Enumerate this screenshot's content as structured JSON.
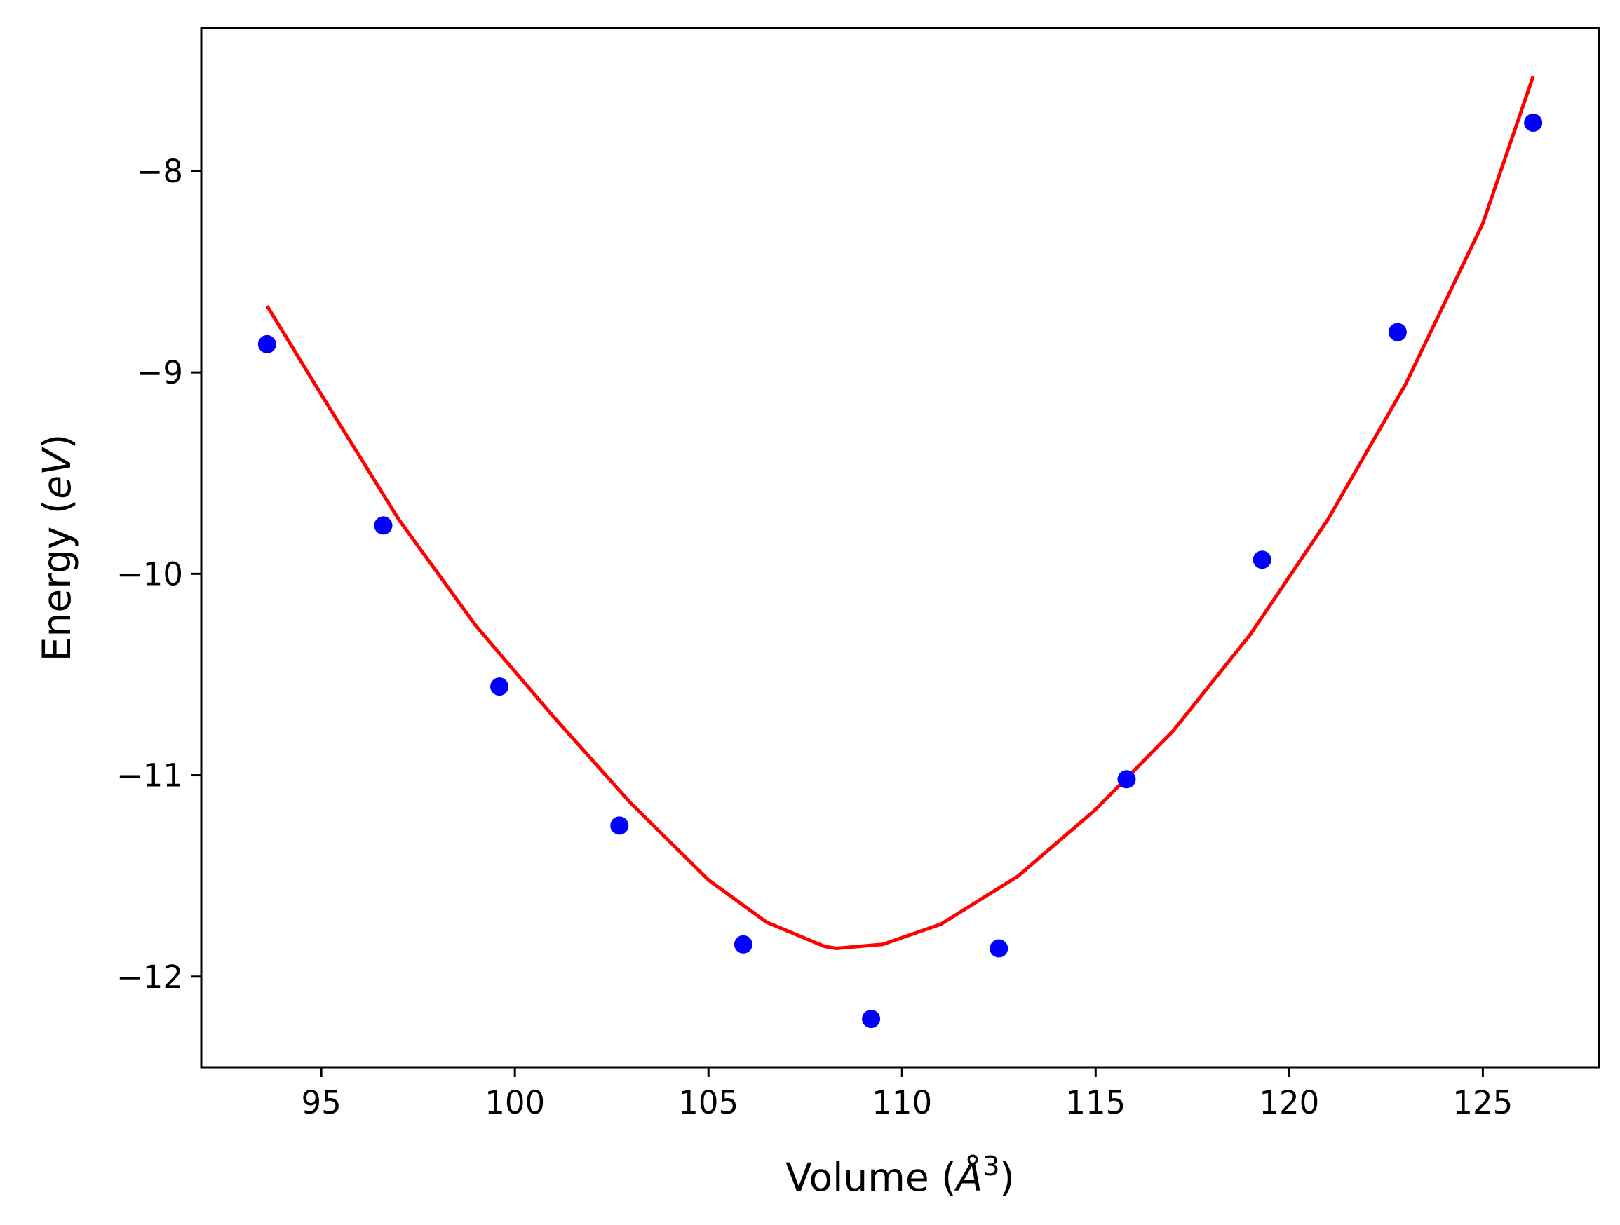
{
  "chart_data": {
    "type": "scatter",
    "title": "",
    "xlabel_prefix": "Volume (",
    "xlabel_symbol": "Å",
    "xlabel_exponent": "3",
    "xlabel_suffix": ")",
    "ylabel_prefix": "Energy (",
    "ylabel_unit": "eV",
    "ylabel_suffix": ")",
    "xlim": [
      91.9,
      128.0
    ],
    "ylim": [
      -12.45,
      -7.29
    ],
    "xticks": [
      95,
      100,
      105,
      110,
      115,
      120,
      125
    ],
    "xtick_labels": [
      "95",
      "100",
      "105",
      "110",
      "115",
      "120",
      "125"
    ],
    "yticks": [
      -8,
      -9,
      -10,
      -11,
      -12
    ],
    "ytick_labels": [
      "−8",
      "−9",
      "−10",
      "−11",
      "−12"
    ],
    "grid": false,
    "series": [
      {
        "kind": "points",
        "color": "#0000ff",
        "x": [
          93.6,
          96.6,
          99.6,
          102.7,
          105.9,
          109.2,
          112.5,
          115.8,
          119.3,
          122.8,
          126.3
        ],
        "y": [
          -8.86,
          -9.76,
          -10.56,
          -11.25,
          -11.84,
          -12.21,
          -11.86,
          -11.02,
          -9.93,
          -8.8,
          -7.76
        ]
      },
      {
        "kind": "fit-curve",
        "color": "#ff0000",
        "x": [
          93.6,
          95.0,
          97.0,
          99.0,
          101.0,
          103.0,
          105.0,
          106.5,
          108.0,
          108.3,
          109.5,
          111.0,
          113.0,
          115.0,
          117.0,
          119.0,
          121.0,
          123.0,
          125.0,
          126.3
        ],
        "y": [
          -8.67,
          -9.11,
          -9.73,
          -10.26,
          -10.71,
          -11.14,
          -11.52,
          -11.73,
          -11.85,
          -11.86,
          -11.84,
          -11.74,
          -11.5,
          -11.17,
          -10.78,
          -10.3,
          -9.73,
          -9.06,
          -8.26,
          -7.53
        ]
      }
    ]
  }
}
